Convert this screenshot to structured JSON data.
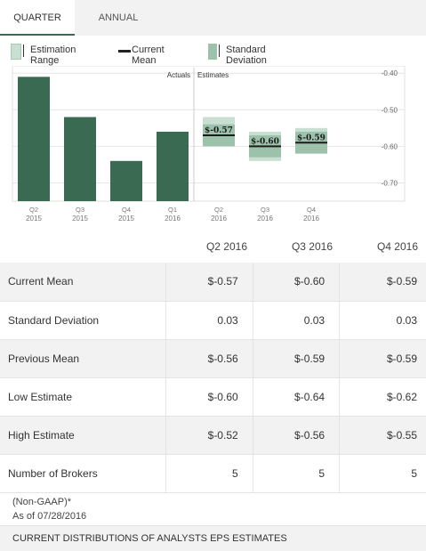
{
  "tabs": {
    "quarter": "QUARTER",
    "annual": "ANNUAL"
  },
  "legend": {
    "range": "Estimation Range",
    "mean": "Current Mean",
    "sd": "Standard Deviation"
  },
  "colors": {
    "bar": "#3a6b52",
    "range": "#c9dfd2",
    "sd": "#9dc2ab",
    "mean": "#1b1b1b"
  },
  "chart_data": {
    "type": "bar",
    "section_labels": {
      "actuals": "Actuals",
      "estimates": "Estimates"
    },
    "ylim": [
      -0.75,
      -0.38
    ],
    "y_ticks": [
      {
        "value": -0.4,
        "label": "-0.40"
      },
      {
        "value": -0.5,
        "label": "-0.50"
      },
      {
        "value": -0.6,
        "label": "-0.60"
      },
      {
        "value": -0.7,
        "label": "-0.70"
      }
    ],
    "categories": [
      {
        "q": "Q2",
        "y": "2015"
      },
      {
        "q": "Q3",
        "y": "2015"
      },
      {
        "q": "Q4",
        "y": "2015"
      },
      {
        "q": "Q1",
        "y": "2016"
      },
      {
        "q": "Q2",
        "y": "2016"
      },
      {
        "q": "Q3",
        "y": "2016"
      },
      {
        "q": "Q4",
        "y": "2016"
      }
    ],
    "actuals": [
      -0.41,
      -0.52,
      -0.64,
      -0.56
    ],
    "estimates": [
      {
        "mean": -0.57,
        "label": "$-0.57",
        "low": -0.6,
        "high": -0.52,
        "sd": 0.03
      },
      {
        "mean": -0.6,
        "label": "$-0.60",
        "low": -0.64,
        "high": -0.56,
        "sd": 0.03
      },
      {
        "mean": -0.59,
        "label": "$-0.59",
        "low": -0.62,
        "high": -0.55,
        "sd": 0.03
      }
    ]
  },
  "table": {
    "headers": [
      "Q2 2016",
      "Q3 2016",
      "Q4 2016"
    ],
    "rows": [
      {
        "label": "Current Mean",
        "values": [
          "$-0.57",
          "$-0.60",
          "$-0.59"
        ]
      },
      {
        "label": "Standard Deviation",
        "values": [
          "0.03",
          "0.03",
          "0.03"
        ]
      },
      {
        "label": "Previous Mean",
        "values": [
          "$-0.56",
          "$-0.59",
          "$-0.59"
        ]
      },
      {
        "label": "Low Estimate",
        "values": [
          "$-0.60",
          "$-0.64",
          "$-0.62"
        ]
      },
      {
        "label": "High Estimate",
        "values": [
          "$-0.52",
          "$-0.56",
          "$-0.55"
        ]
      },
      {
        "label": "Number of Brokers",
        "values": [
          "5",
          "5",
          "5"
        ]
      }
    ]
  },
  "footnote": {
    "gaap": "(Non-GAAP)*",
    "as_of": "As of 07/28/2016"
  },
  "bottom_bar": "CURRENT DISTRIBUTIONS OF ANALYSTS EPS ESTIMATES"
}
